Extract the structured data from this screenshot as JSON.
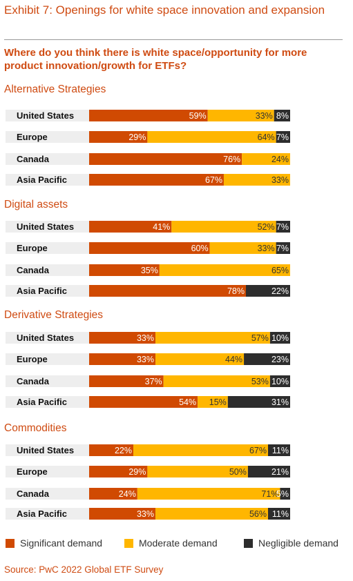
{
  "title": "Exhibit 7: Openings for white space innovation and expansion",
  "question": "Where do you think there is white space/opportunity for more product innovation/growth for ETFs?",
  "source": "Source: PwC 2022 Global ETF Survey",
  "colors": {
    "significant": "#d04a02",
    "moderate": "#ffb600",
    "negligible": "#2d2d2d",
    "accent": "#cf4b12"
  },
  "chart_data": {
    "type": "bar",
    "orientation": "horizontal",
    "stacked": true,
    "value_unit": "%",
    "legend_position": "bottom",
    "series": [
      {
        "name": "Significant demand"
      },
      {
        "name": "Moderate demand"
      },
      {
        "name": "Negligible demand"
      }
    ],
    "groups": [
      {
        "title": "Alternative Strategies",
        "rows": [
          {
            "label": "United States",
            "values": [
              59,
              33,
              8
            ]
          },
          {
            "label": "Europe",
            "values": [
              29,
              64,
              7
            ]
          },
          {
            "label": "Canada",
            "values": [
              76,
              24,
              0
            ]
          },
          {
            "label": "Asia Pacific",
            "values": [
              67,
              33,
              0
            ]
          }
        ]
      },
      {
        "title": "Digital assets",
        "rows": [
          {
            "label": "United States",
            "values": [
              41,
              52,
              7
            ]
          },
          {
            "label": "Europe",
            "values": [
              60,
              33,
              7
            ]
          },
          {
            "label": "Canada",
            "values": [
              35,
              65,
              0
            ]
          },
          {
            "label": "Asia Pacific",
            "values": [
              78,
              0,
              22
            ]
          }
        ]
      },
      {
        "title": "Derivative Strategies",
        "rows": [
          {
            "label": "United States",
            "values": [
              33,
              57,
              10
            ]
          },
          {
            "label": "Europe",
            "values": [
              33,
              44,
              23
            ]
          },
          {
            "label": "Canada",
            "values": [
              37,
              53,
              10
            ]
          },
          {
            "label": "Asia Pacific",
            "values": [
              54,
              15,
              31
            ]
          }
        ]
      },
      {
        "title": "Commodities",
        "rows": [
          {
            "label": "United States",
            "values": [
              22,
              67,
              11
            ]
          },
          {
            "label": "Europe",
            "values": [
              29,
              50,
              21
            ]
          },
          {
            "label": "Canada",
            "values": [
              24,
              71,
              5
            ]
          },
          {
            "label": "Asia Pacific",
            "values": [
              33,
              56,
              11
            ]
          }
        ]
      }
    ]
  }
}
